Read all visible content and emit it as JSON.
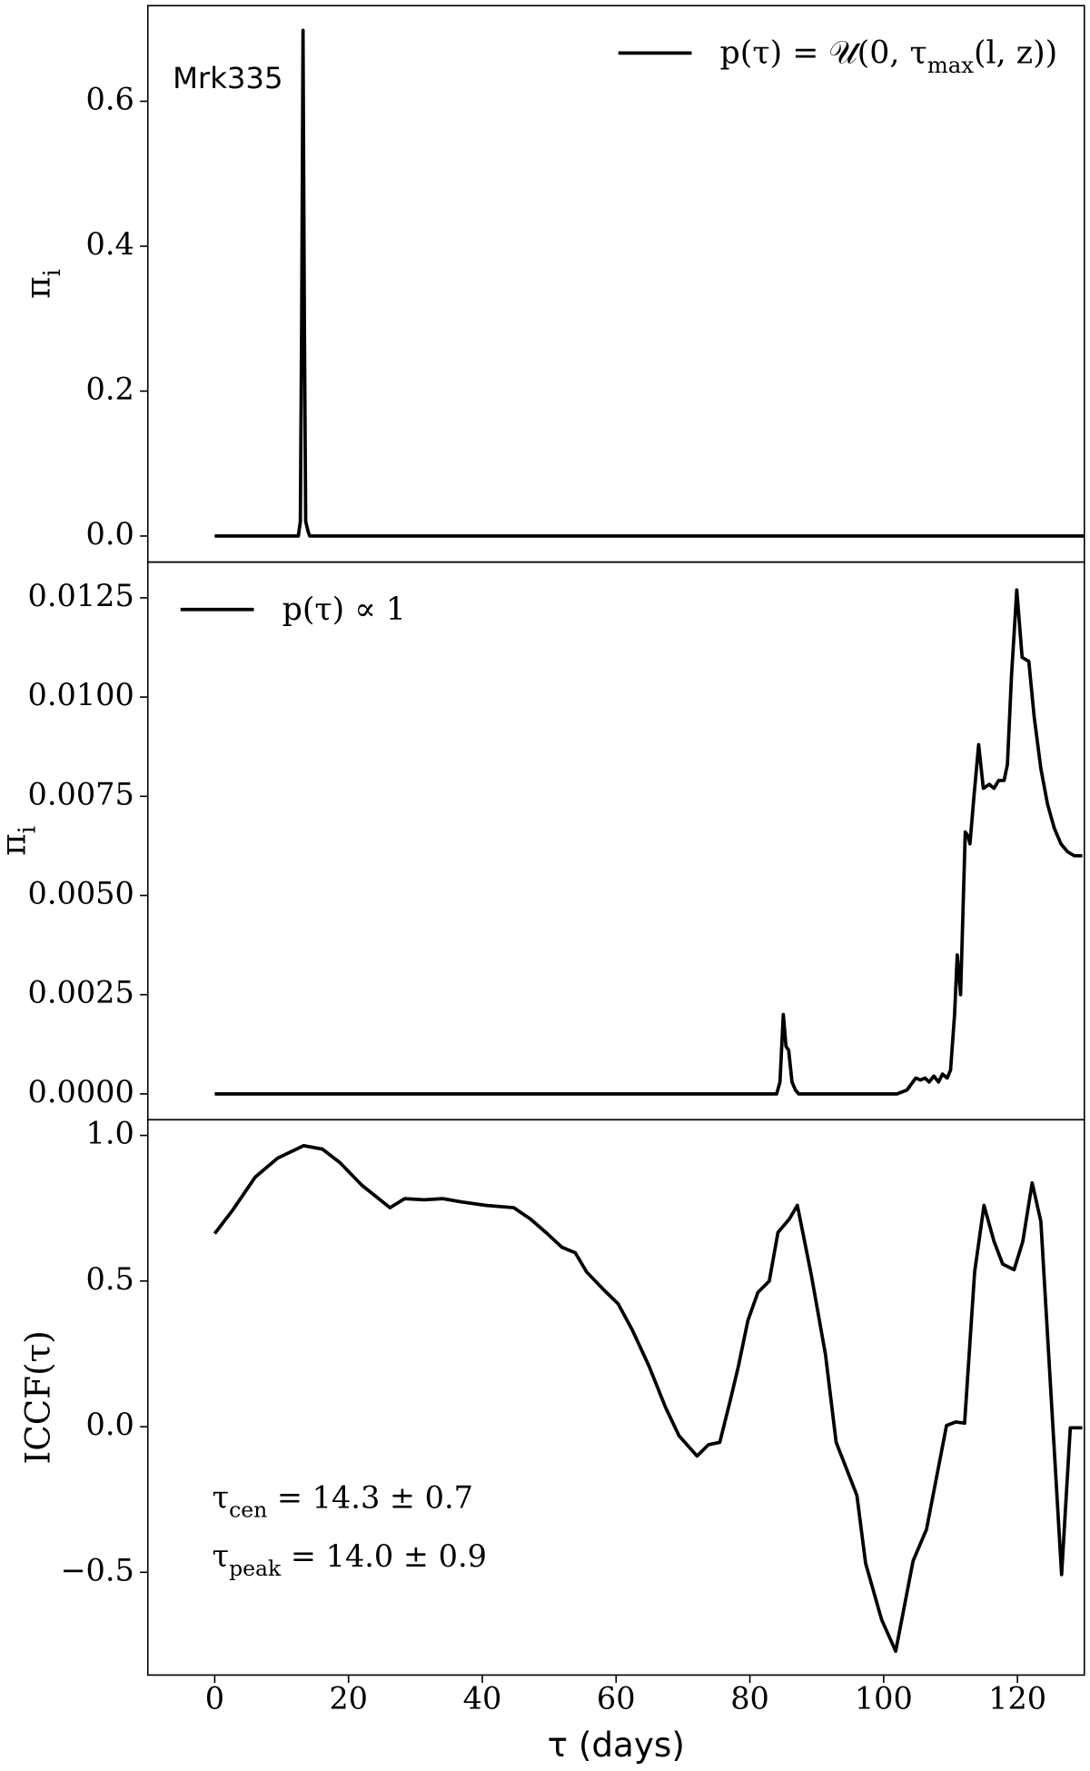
{
  "chart_data": [
    {
      "type": "line",
      "xlim": [
        -10,
        130
      ],
      "ylim": [
        -0.036,
        0.732
      ],
      "yticks": [
        {
          "value": 0,
          "label": "0.0"
        },
        {
          "value": 0.2,
          "label": "0.2"
        },
        {
          "value": 0.4,
          "label": "0.4"
        },
        {
          "value": 0.6,
          "label": "0.6"
        }
      ],
      "ylabel": [
        "π",
        "i"
      ],
      "annotations": [
        [
          "Mrk335"
        ]
      ],
      "legend": "upper right",
      "x": [
        0,
        12.5,
        12.8,
        13.0,
        13.2,
        13.4,
        13.6,
        14.0,
        14.2,
        130
      ],
      "series": [
        {
          "name": [
            "p(τ) = 𝒰(0, τ",
            "max",
            "(l, z))"
          ],
          "color": "#000000",
          "values": [
            0,
            0,
            0.02,
            0.3,
            0.698,
            0.3,
            0.02,
            0.005,
            0,
            0
          ]
        }
      ]
    },
    {
      "type": "line",
      "xlim": [
        -10,
        130
      ],
      "ylim": [
        -0.00065,
        0.0134
      ],
      "yticks": [
        {
          "value": 0,
          "label": "0.0000"
        },
        {
          "value": 0.0025,
          "label": "0.0025"
        },
        {
          "value": 0.005,
          "label": "0.0050"
        },
        {
          "value": 0.0075,
          "label": "0.0075"
        },
        {
          "value": 0.01,
          "label": "0.0100"
        },
        {
          "value": 0.0125,
          "label": "0.0125"
        }
      ],
      "ylabel": [
        "π",
        "i"
      ],
      "legend": "upper left",
      "x": [
        0,
        84,
        84.5,
        85.0,
        85.4,
        85.8,
        86.3,
        86.8,
        87.3,
        102,
        103.5,
        104.8,
        105.5,
        106.2,
        106.8,
        107.5,
        108.2,
        108.8,
        109.5,
        110,
        110.6,
        111,
        111.5,
        112.2,
        112.6,
        112.9,
        113.5,
        114.2,
        114.9,
        115.8,
        116.5,
        117.2,
        118,
        118.5,
        119.1,
        119.9,
        120.7,
        121.7,
        122.5,
        123.5,
        124.5,
        125.5,
        126.5,
        127.5,
        128.5,
        129.7
      ],
      "series": [
        {
          "name": [
            "p(τ) ∝ 1"
          ],
          "color": "#000000",
          "values": [
            0,
            0,
            0.0003,
            0.002,
            0.0012,
            0.0011,
            0.0003,
            0.0001,
            0,
            0,
            0.0001,
            0.0004,
            0.00035,
            0.0004,
            0.0003,
            0.00045,
            0.0003,
            0.0005,
            0.0004,
            0.0006,
            0.002,
            0.0035,
            0.0025,
            0.0066,
            0.0065,
            0.0063,
            0.0075,
            0.0088,
            0.0077,
            0.0078,
            0.0077,
            0.0079,
            0.0079,
            0.0083,
            0.0105,
            0.0127,
            0.011,
            0.0109,
            0.0095,
            0.0082,
            0.0073,
            0.0067,
            0.0063,
            0.0061,
            0.006,
            0.006
          ]
        }
      ]
    },
    {
      "type": "line",
      "xlim": [
        -10,
        130
      ],
      "ylim": [
        -0.853,
        1.054
      ],
      "xticks": [
        0,
        20,
        40,
        60,
        80,
        100,
        120
      ],
      "yticks": [
        {
          "value": -0.5,
          "label": "−0.5"
        },
        {
          "value": 0,
          "label": "0.0"
        },
        {
          "value": 0.5,
          "label": "0.5"
        },
        {
          "value": 1,
          "label": "1.0"
        }
      ],
      "xlabel": "τ (days)",
      "ylabel": [
        "ICCF(τ)"
      ],
      "annotations": [
        [
          "τ",
          "cen",
          " = 14.3 ± 0.7"
        ],
        [
          "τ",
          "peak",
          " = 14.0 ± 0.9"
        ]
      ],
      "x": [
        0,
        2.7,
        6.05,
        9.4,
        13.3,
        16.1,
        18.7,
        22.0,
        26.2,
        28.4,
        31.3,
        34.1,
        37.1,
        40.5,
        44.7,
        47.2,
        49.7,
        51.9,
        53.9,
        55.6,
        58.2,
        60.3,
        62.4,
        64.9,
        67.4,
        69.4,
        72.1,
        73.8,
        75.5,
        77.1,
        78.3,
        79.7,
        81.2,
        82.9,
        84.2,
        85.9,
        87.1,
        89.2,
        91.3,
        92.9,
        96.0,
        97.3,
        99.7,
        101.8,
        104.4,
        106.4,
        109.4,
        110.8,
        112.1,
        113.6,
        115.0,
        116.5,
        117.8,
        119.5,
        120.8,
        122.2,
        123.5,
        126.6,
        127.9,
        129.7
      ],
      "series": [
        {
          "color": "#000000",
          "values": [
            0.663,
            0.744,
            0.857,
            0.922,
            0.965,
            0.953,
            0.907,
            0.829,
            0.752,
            0.783,
            0.779,
            0.783,
            0.771,
            0.76,
            0.752,
            0.713,
            0.663,
            0.616,
            0.597,
            0.531,
            0.469,
            0.422,
            0.333,
            0.209,
            0.066,
            -0.031,
            -0.101,
            -0.062,
            -0.054,
            0.093,
            0.209,
            0.364,
            0.461,
            0.5,
            0.667,
            0.713,
            0.76,
            0.519,
            0.248,
            -0.054,
            -0.236,
            -0.469,
            -0.663,
            -0.771,
            -0.461,
            -0.353,
            0.004,
            0.016,
            0.012,
            0.531,
            0.76,
            0.636,
            0.558,
            0.539,
            0.636,
            0.837,
            0.705,
            -0.508,
            -0.004,
            -0.004
          ]
        }
      ]
    }
  ]
}
